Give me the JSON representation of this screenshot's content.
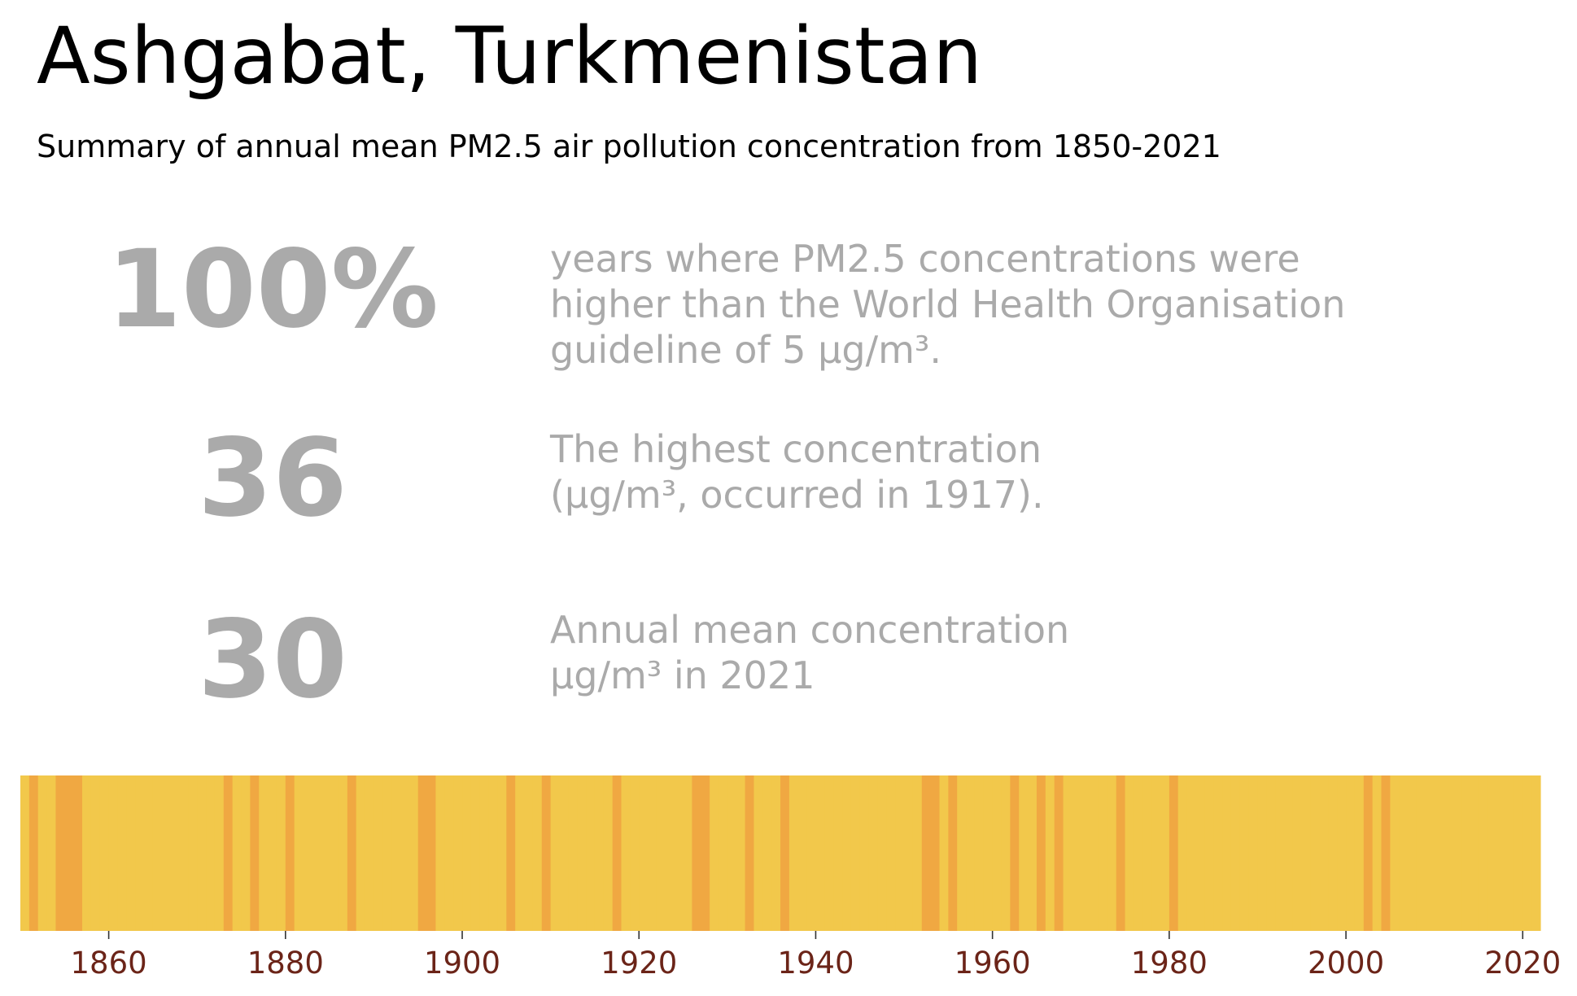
{
  "header": {
    "title": "Ashgabat, Turkmenistan",
    "subtitle": "Summary of annual mean PM2.5 air pollution concentration from 1850-2021"
  },
  "stats": [
    {
      "value": "100%",
      "lines": [
        "years where PM2.5 concentrations were",
        "higher than the World Health Organisation",
        "guideline of 5 µg/m³."
      ]
    },
    {
      "value": "36",
      "lines": [
        "The highest concentration",
        "(µg/m³, occurred in 1917)."
      ]
    },
    {
      "value": "30",
      "lines": [
        "Annual mean concentration",
        "µg/m³ in 2021"
      ]
    }
  ],
  "colors": {
    "stat_text": "#aaaaaa",
    "stripe_light": "#f2c84b",
    "stripe_dark": "#f0a842",
    "tick_label": "#6b2418"
  },
  "chart_data": {
    "type": "heatmap",
    "title": "",
    "xlabel": "",
    "ylabel": "",
    "xlim": [
      1850,
      2022
    ],
    "x_ticks": [
      1860,
      1880,
      1900,
      1920,
      1940,
      1960,
      1980,
      2000,
      2020
    ],
    "x": [
      1850,
      1851,
      1852,
      1853,
      1854,
      1855,
      1856,
      1857,
      1858,
      1859,
      1860,
      1861,
      1862,
      1863,
      1864,
      1865,
      1866,
      1867,
      1868,
      1869,
      1870,
      1871,
      1872,
      1873,
      1874,
      1875,
      1876,
      1877,
      1878,
      1879,
      1880,
      1881,
      1882,
      1883,
      1884,
      1885,
      1886,
      1887,
      1888,
      1889,
      1890,
      1891,
      1892,
      1893,
      1894,
      1895,
      1896,
      1897,
      1898,
      1899,
      1900,
      1901,
      1902,
      1903,
      1904,
      1905,
      1906,
      1907,
      1908,
      1909,
      1910,
      1911,
      1912,
      1913,
      1914,
      1915,
      1916,
      1917,
      1918,
      1919,
      1920,
      1921,
      1922,
      1923,
      1924,
      1925,
      1926,
      1927,
      1928,
      1929,
      1930,
      1931,
      1932,
      1933,
      1934,
      1935,
      1936,
      1937,
      1938,
      1939,
      1940,
      1941,
      1942,
      1943,
      1944,
      1945,
      1946,
      1947,
      1948,
      1949,
      1950,
      1951,
      1952,
      1953,
      1954,
      1955,
      1956,
      1957,
      1958,
      1959,
      1960,
      1961,
      1962,
      1963,
      1964,
      1965,
      1966,
      1967,
      1968,
      1969,
      1970,
      1971,
      1972,
      1973,
      1974,
      1975,
      1976,
      1977,
      1978,
      1979,
      1980,
      1981,
      1982,
      1983,
      1984,
      1985,
      1986,
      1987,
      1988,
      1989,
      1990,
      1991,
      1992,
      1993,
      1994,
      1995,
      1996,
      1997,
      1998,
      1999,
      2000,
      2001,
      2002,
      2003,
      2004,
      2005,
      2006,
      2007,
      2008,
      2009,
      2010,
      2011,
      2012,
      2013,
      2014,
      2015,
      2016,
      2017,
      2018,
      2019,
      2020,
      2021
    ],
    "concentration_class": [
      0,
      1,
      0,
      0,
      1,
      1,
      1,
      0,
      0,
      0,
      0,
      0,
      0,
      0,
      0,
      0,
      0,
      0,
      0,
      0,
      0,
      0,
      0,
      1,
      0,
      0,
      1,
      0,
      0,
      0,
      1,
      0,
      0,
      0,
      0,
      0,
      0,
      1,
      0,
      0,
      0,
      0,
      0,
      0,
      0,
      1,
      1,
      0,
      0,
      0,
      0,
      0,
      0,
      0,
      0,
      1,
      0,
      0,
      0,
      1,
      0,
      0,
      0,
      0,
      0,
      0,
      0,
      1,
      0,
      0,
      0,
      0,
      0,
      0,
      0,
      0,
      1,
      1,
      0,
      0,
      0,
      0,
      1,
      0,
      0,
      0,
      1,
      0,
      0,
      0,
      0,
      0,
      0,
      0,
      0,
      0,
      0,
      0,
      0,
      0,
      0,
      0,
      1,
      1,
      0,
      1,
      0,
      0,
      0,
      0,
      0,
      0,
      1,
      0,
      0,
      1,
      0,
      1,
      0,
      0,
      0,
      0,
      0,
      0,
      1,
      0,
      0,
      0,
      0,
      0,
      1,
      0,
      0,
      0,
      0,
      0,
      0,
      0,
      0,
      0,
      0,
      0,
      0,
      0,
      0,
      0,
      0,
      0,
      0,
      0,
      0,
      0,
      1,
      0,
      1,
      0,
      0,
      0,
      0,
      0,
      0,
      0,
      0,
      0,
      0,
      0,
      0,
      0,
      0,
      0,
      0,
      0
    ],
    "legend": "none",
    "grid": false
  }
}
